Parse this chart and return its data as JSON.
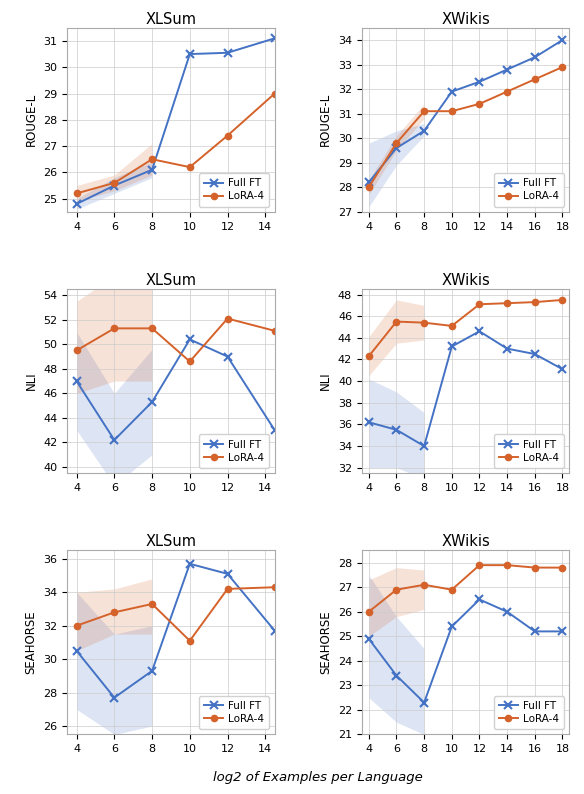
{
  "xlsum_x": [
    4,
    6,
    8,
    10,
    12,
    14.5
  ],
  "xwikis_x": [
    4,
    6,
    8,
    10,
    12,
    14,
    16,
    18
  ],
  "xlsum_rouge_full": [
    24.8,
    25.5,
    26.1,
    30.5,
    30.55,
    31.1
  ],
  "xlsum_rouge_lora": [
    25.2,
    25.6,
    26.5,
    26.2,
    27.4,
    29.0
  ],
  "xlsum_rouge_full_lo": [
    24.6,
    25.2,
    25.8,
    null,
    null,
    null
  ],
  "xlsum_rouge_full_hi": [
    25.0,
    25.8,
    26.4,
    null,
    null,
    null
  ],
  "xlsum_rouge_lora_lo": [
    24.9,
    25.3,
    25.9,
    null,
    null,
    null
  ],
  "xlsum_rouge_lora_hi": [
    25.5,
    25.9,
    27.1,
    null,
    null,
    null
  ],
  "xwikis_rouge_full": [
    28.2,
    29.6,
    30.3,
    31.9,
    32.3,
    32.8,
    33.3,
    34.0
  ],
  "xwikis_rouge_lora": [
    28.0,
    29.8,
    31.1,
    31.1,
    31.4,
    31.9,
    32.4,
    32.9
  ],
  "xwikis_rouge_full_lo": [
    27.2,
    28.9,
    30.1,
    null,
    null,
    null,
    null,
    null
  ],
  "xwikis_rouge_full_hi": [
    29.8,
    30.3,
    30.6,
    null,
    null,
    null,
    null,
    null
  ],
  "xwikis_rouge_lora_lo": [
    27.7,
    29.5,
    30.8,
    null,
    null,
    null,
    null,
    null
  ],
  "xwikis_rouge_lora_hi": [
    28.3,
    30.1,
    31.4,
    null,
    null,
    null,
    null,
    null
  ],
  "xlsum_nli_full": [
    47.0,
    42.2,
    45.3,
    50.4,
    49.0,
    43.0
  ],
  "xlsum_nli_lora": [
    49.5,
    51.3,
    51.3,
    48.6,
    52.1,
    51.1
  ],
  "xlsum_nli_full_lo": [
    43.0,
    38.5,
    41.0,
    null,
    null,
    null
  ],
  "xlsum_nli_full_hi": [
    51.0,
    46.0,
    49.6,
    null,
    null,
    null
  ],
  "xlsum_nli_lora_lo": [
    46.0,
    47.0,
    47.0,
    null,
    null,
    null
  ],
  "xlsum_nli_lora_hi": [
    53.5,
    55.6,
    55.6,
    null,
    null,
    null
  ],
  "xwikis_nli_full": [
    36.2,
    35.5,
    34.0,
    43.2,
    44.6,
    43.0,
    42.5,
    41.1
  ],
  "xwikis_nli_lora": [
    42.3,
    45.5,
    45.4,
    45.1,
    47.1,
    47.2,
    47.3,
    47.5
  ],
  "xwikis_nli_full_lo": [
    32.0,
    32.0,
    31.0,
    null,
    null,
    null,
    null,
    null
  ],
  "xwikis_nli_full_hi": [
    40.2,
    39.0,
    37.1,
    null,
    null,
    null,
    null,
    null
  ],
  "xwikis_nli_lora_lo": [
    40.5,
    43.5,
    43.8,
    null,
    null,
    null,
    null,
    null
  ],
  "xwikis_nli_lora_hi": [
    44.1,
    47.5,
    47.0,
    null,
    null,
    null,
    null,
    null
  ],
  "xlsum_sea_full": [
    30.5,
    27.7,
    29.3,
    35.7,
    35.1,
    31.7
  ],
  "xlsum_sea_lora": [
    32.0,
    32.8,
    33.3,
    31.1,
    34.2,
    34.3
  ],
  "xlsum_sea_full_lo": [
    27.0,
    25.5,
    26.0,
    null,
    null,
    null
  ],
  "xlsum_sea_full_hi": [
    34.0,
    31.5,
    32.0,
    null,
    null,
    null
  ],
  "xlsum_sea_lora_lo": [
    30.5,
    31.5,
    31.5,
    null,
    null,
    null
  ],
  "xlsum_sea_lora_hi": [
    34.0,
    34.2,
    34.8,
    null,
    null,
    null
  ],
  "xwikis_sea_full": [
    24.9,
    23.4,
    22.3,
    25.4,
    26.5,
    26.0,
    25.2,
    25.2
  ],
  "xwikis_sea_lora": [
    26.0,
    26.9,
    27.1,
    26.9,
    27.9,
    27.9,
    27.8,
    27.8
  ],
  "xwikis_sea_full_lo": [
    22.5,
    21.5,
    21.0,
    null,
    null,
    null,
    null,
    null
  ],
  "xwikis_sea_full_hi": [
    27.5,
    25.8,
    24.5,
    null,
    null,
    null,
    null,
    null
  ],
  "xwikis_sea_lora_lo": [
    25.0,
    25.8,
    26.1,
    null,
    null,
    null,
    null,
    null
  ],
  "xwikis_sea_lora_hi": [
    27.3,
    27.8,
    27.7,
    null,
    null,
    null,
    null,
    null
  ],
  "blue_color": "#4472c4",
  "orange_color": "#d4622a",
  "fill_alpha": 0.18,
  "xlsum_xticks": [
    4,
    6,
    8,
    10,
    12,
    14
  ],
  "xwikis_xticks": [
    4,
    6,
    8,
    10,
    12,
    14,
    16,
    18
  ],
  "rouge_xlsum_ylim": [
    24.5,
    31.5
  ],
  "rouge_xwikis_ylim": [
    27.0,
    34.5
  ],
  "nli_xlsum_ylim": [
    39.5,
    54.5
  ],
  "nli_xwikis_ylim": [
    31.5,
    48.5
  ],
  "sea_xlsum_ylim": [
    25.5,
    36.5
  ],
  "sea_xwikis_ylim": [
    21.0,
    28.5
  ],
  "rouge_xlsum_yticks": [
    25,
    26,
    27,
    28,
    29,
    30,
    31
  ],
  "rouge_xwikis_yticks": [
    27,
    28,
    29,
    30,
    31,
    32,
    33,
    34
  ],
  "nli_xlsum_yticks": [
    40,
    42,
    44,
    46,
    48,
    50,
    52,
    54
  ],
  "nli_xwikis_yticks": [
    32,
    34,
    36,
    38,
    40,
    42,
    44,
    46,
    48
  ],
  "sea_xlsum_yticks": [
    26,
    28,
    30,
    32,
    34,
    36
  ],
  "sea_xwikis_yticks": [
    21,
    22,
    23,
    24,
    25,
    26,
    27,
    28
  ],
  "xlabel": "log2 of Examples per Language"
}
